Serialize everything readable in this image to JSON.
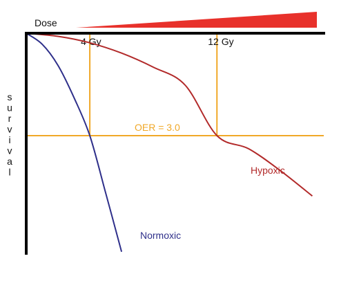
{
  "chart_data": {
    "type": "line",
    "title": "",
    "xlabel": "Dose",
    "ylabel": "survival",
    "x_scale": "linear",
    "y_scale": "log",
    "series": [
      {
        "name": "Normoxic",
        "color": "#2e2f8a",
        "x": [
          0,
          1,
          2,
          3,
          4,
          5,
          6
        ],
        "y": [
          1.0,
          0.72,
          0.38,
          0.145,
          0.046,
          0.0082,
          0.0014
        ]
      },
      {
        "name": "Hypoxic",
        "color": "#b22a2a",
        "x": [
          0,
          2,
          4,
          6,
          8,
          10,
          12,
          14,
          16,
          18
        ],
        "y": [
          1.0,
          0.91,
          0.75,
          0.55,
          0.36,
          0.21,
          0.046,
          0.031,
          0.016,
          0.0075
        ]
      }
    ],
    "annotations": [
      {
        "id": "dose-4",
        "text": "4 Gy",
        "x": 4
      },
      {
        "id": "dose-12",
        "text": "12 Gy",
        "x": 12
      }
    ],
    "reference_line": {
      "text": "OER = 3.0",
      "y": 0.046
    },
    "guide_color": "#f0a828",
    "dose_wedge_color": "#e8312b"
  }
}
